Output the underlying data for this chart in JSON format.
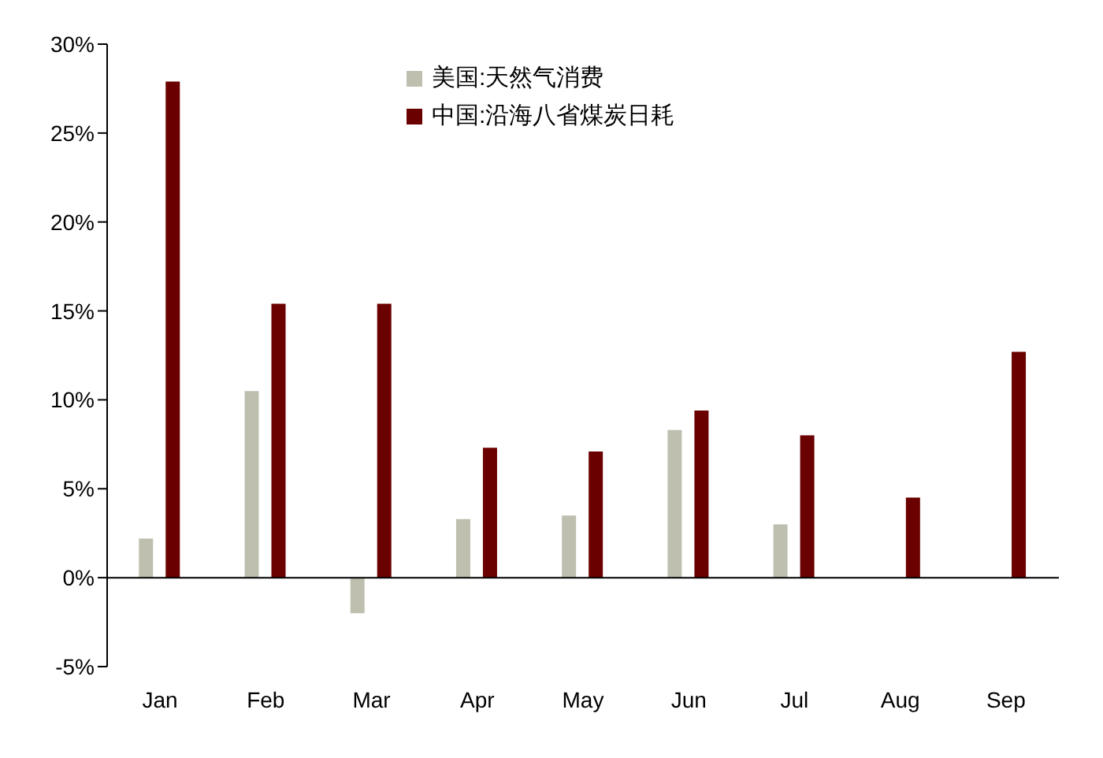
{
  "chart_data": {
    "type": "bar",
    "categories": [
      "Jan",
      "Feb",
      "Mar",
      "Apr",
      "May",
      "Jun",
      "Jul",
      "Aug",
      "Sep"
    ],
    "series": [
      {
        "name": "美国:天然气消费",
        "color": "#bfbfb0",
        "values": [
          2.2,
          10.5,
          -2.0,
          3.3,
          3.5,
          8.3,
          3.0,
          null,
          null
        ]
      },
      {
        "name": "中国:沿海八省煤炭日耗",
        "color": "#6b0000",
        "values": [
          27.9,
          15.4,
          15.4,
          7.3,
          7.1,
          9.4,
          8.0,
          4.5,
          12.7
        ]
      }
    ],
    "ylim": [
      -5,
      30
    ],
    "yticks": [
      {
        "value": -5,
        "label": "-5%"
      },
      {
        "value": 0,
        "label": "0%"
      },
      {
        "value": 5,
        "label": "5%"
      },
      {
        "value": 10,
        "label": "10%"
      },
      {
        "value": 15,
        "label": "15%"
      },
      {
        "value": 20,
        "label": "20%"
      },
      {
        "value": 25,
        "label": "25%"
      },
      {
        "value": 30,
        "label": "30%"
      }
    ],
    "legend": "top"
  }
}
